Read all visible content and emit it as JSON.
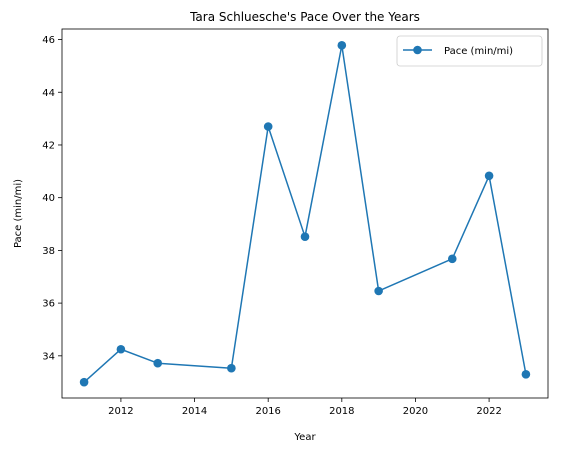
{
  "chart_data": {
    "type": "line",
    "title": "Tara Schluesche's Pace Over the Years",
    "xlabel": "Year",
    "ylabel": "Pace (min/mi)",
    "xlim": [
      2010.4,
      2023.6
    ],
    "ylim": [
      32.4,
      46.4
    ],
    "xticks": [
      2012,
      2014,
      2016,
      2018,
      2020,
      2022
    ],
    "yticks": [
      34,
      36,
      38,
      40,
      42,
      44,
      46
    ],
    "grid": false,
    "legend_position": "top-right",
    "series": [
      {
        "name": "Pace (min/mi)",
        "color": "#1f77b4",
        "marker": "circle",
        "x": [
          2011,
          2012,
          2013,
          2015,
          2016,
          2017,
          2018,
          2019,
          2021,
          2022,
          2023
        ],
        "y": [
          33.0,
          34.25,
          33.72,
          33.53,
          42.7,
          38.52,
          45.78,
          36.46,
          37.68,
          40.83,
          33.3
        ]
      }
    ]
  }
}
